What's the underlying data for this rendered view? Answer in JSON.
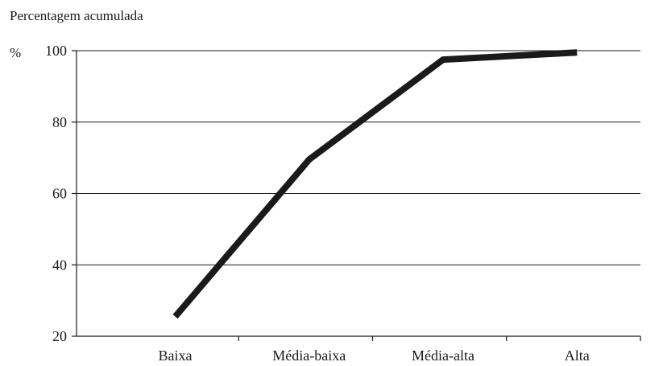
{
  "chart_data": {
    "type": "line",
    "ylabel": "Percentagem acumulada",
    "y_unit": "%",
    "categories": [
      "Baixa",
      "Média-baixa",
      "Média-alta",
      "Alta"
    ],
    "series": [
      {
        "values": [
          25.5,
          69.5,
          97.5,
          99.5
        ]
      }
    ],
    "ylim": [
      20,
      100
    ],
    "yticks": [
      20,
      40,
      60,
      80,
      100
    ],
    "grid": true,
    "legend": "none",
    "colors": {
      "line": "#1a1a1a",
      "grid": "#1a1a1a"
    }
  }
}
